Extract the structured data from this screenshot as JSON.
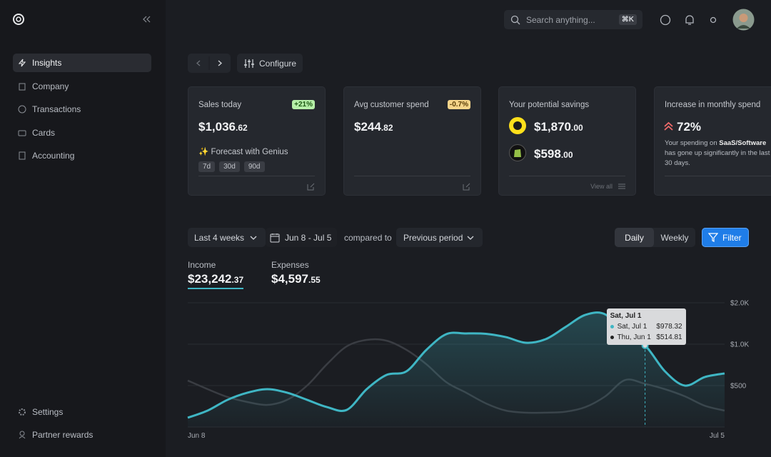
{
  "sidebar": {
    "nav": [
      "Insights",
      "Company",
      "Transactions",
      "Cards",
      "Accounting"
    ],
    "footer": [
      "Settings",
      "Partner rewards"
    ]
  },
  "topbar": {
    "search": "Search anything...",
    "shortcut": "⌘K"
  },
  "toolbar": {
    "configure": "Configure"
  },
  "cards": [
    {
      "title": "Sales today",
      "badge": "+21%",
      "amount": "$1,036",
      "cents": ".62",
      "forecast": "✨ Forecast with Genius",
      "chips": [
        "7d",
        "30d",
        "90d"
      ]
    },
    {
      "title": "Avg customer spend",
      "badge": "-0.7%",
      "amount": "$244",
      "cents": ".82"
    },
    {
      "title": "Your potential savings",
      "items": [
        {
          "amount": "$1,870",
          "cents": ".00"
        },
        {
          "amount": "$598",
          "cents": ".00"
        }
      ],
      "link": "View all"
    },
    {
      "title": "Increase in monthly spend",
      "value": "72%",
      "text_before": "Your spending on ",
      "highlight": "SaaS/Software",
      "text_after": " has gone up significantly in the last 30 days."
    }
  ],
  "filters": {
    "range": "Last 4 weeks",
    "dates": "Jun 8 - Jul 5",
    "compared": "compared to",
    "period": "Previous period",
    "views": [
      "Daily",
      "Weekly"
    ],
    "filter": "Filter"
  },
  "metrics": [
    {
      "label": "Income",
      "amount": "$23,242",
      "cents": ".37"
    },
    {
      "label": "Expenses",
      "amount": "$4,597",
      "cents": ".55"
    }
  ],
  "chart_data": {
    "type": "line",
    "log_scale": true,
    "grid": true,
    "categories": [
      "Jun 8",
      null,
      null,
      null,
      null,
      null,
      null,
      null,
      null,
      null,
      null,
      null,
      null,
      null,
      null,
      null,
      null,
      null,
      null,
      null,
      null,
      null,
      null,
      null,
      null,
      null,
      null,
      "Jul 5"
    ],
    "series": [
      {
        "color": "#3fb6c4",
        "fill": true,
        "values": [
          292,
          329,
          394,
          444,
          471,
          444,
          394,
          349,
          333,
          471,
          598,
          635,
          909,
          1182,
          1197,
          1190,
          1126,
          1024,
          1087,
          1333,
          1633,
          1645,
          1154,
          978.32,
          635,
          500,
          577,
          613
        ]
      },
      {
        "color": "#3a3d43",
        "fill": false,
        "values": [
          544,
          471,
          413,
          380,
          362,
          394,
          500,
          715,
          965,
          1074,
          1060,
          909,
          715,
          530,
          444,
          371,
          329,
          318,
          318,
          323,
          349,
          418,
          549,
          514.81,
          471,
          418,
          357,
          329
        ]
      }
    ],
    "ylim": [
      250,
      2000
    ],
    "yticks": [
      {
        "value": 500,
        "label": "$500"
      },
      {
        "value": 1000,
        "label": "$1.0K"
      },
      {
        "value": 2000,
        "label": "$2.0K"
      }
    ],
    "tooltip": {
      "index": 23,
      "title": "Sat, Jul 1",
      "rows": [
        {
          "label": "Sat, Jul 1",
          "value_label": "$978.32"
        },
        {
          "label": "Thu, Jun 1",
          "value_label": "$514.81"
        }
      ]
    }
  }
}
